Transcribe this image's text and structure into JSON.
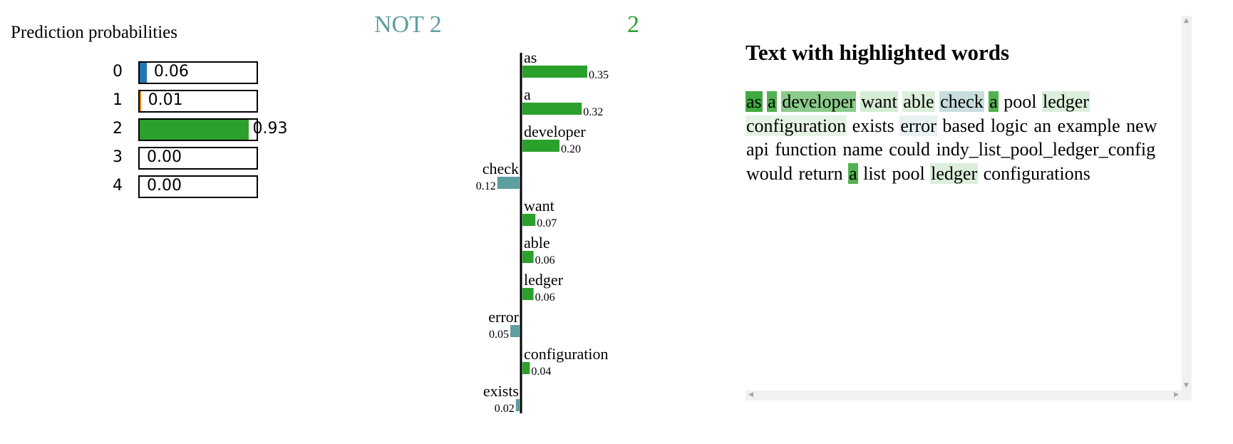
{
  "probabilities": {
    "title": "Prediction probabilities",
    "rows": [
      {
        "label": "0",
        "value": 0.06,
        "text": "0.06",
        "color": "#1f77b4"
      },
      {
        "label": "1",
        "value": 0.01,
        "text": "0.01",
        "color": "#ff7f0e"
      },
      {
        "label": "2",
        "value": 0.93,
        "text": "0.93",
        "color": "#2ca02c"
      },
      {
        "label": "3",
        "value": 0.0,
        "text": "0.00",
        "color": "#d62728"
      },
      {
        "label": "4",
        "value": 0.0,
        "text": "0.00",
        "color": "#9467bd"
      }
    ]
  },
  "explanation": {
    "negative_title": "NOT 2",
    "positive_title": "2",
    "negative_color": "#5f9ea0",
    "positive_color": "#2ca02c"
  },
  "chart_data": {
    "type": "bar",
    "orientation": "horizontal",
    "categories": [
      "as",
      "a",
      "developer",
      "check",
      "want",
      "able",
      "ledger",
      "error",
      "configuration",
      "exists"
    ],
    "values": [
      0.35,
      0.32,
      0.2,
      -0.12,
      0.07,
      0.06,
      0.06,
      -0.05,
      0.04,
      -0.02
    ],
    "labels": [
      "0.35",
      "0.32",
      "0.20",
      "0.12",
      "0.07",
      "0.06",
      "0.06",
      "0.05",
      "0.04",
      "0.02"
    ]
  },
  "text_panel": {
    "title": "Text with highlighted words",
    "tokens": [
      {
        "t": "as",
        "bg": "#2ca02c",
        "o": 0.9
      },
      {
        "t": "a",
        "bg": "#2ca02c",
        "o": 0.82
      },
      {
        "t": "developer",
        "bg": "#2ca02c",
        "o": 0.55
      },
      {
        "t": "want",
        "bg": "#2ca02c",
        "o": 0.2
      },
      {
        "t": "able",
        "bg": "#2ca02c",
        "o": 0.17
      },
      {
        "t": "check",
        "bg": "#5f9ea0",
        "o": 0.35
      },
      {
        "t": "a",
        "bg": "#2ca02c",
        "o": 0.82
      },
      {
        "t": "pool",
        "bg": "",
        "o": 0
      },
      {
        "t": "ledger",
        "bg": "#2ca02c",
        "o": 0.17
      },
      {
        "t": "configuration",
        "bg": "#2ca02c",
        "o": 0.12
      },
      {
        "t": "exists",
        "bg": "",
        "o": 0
      },
      {
        "t": "error",
        "bg": "#5f9ea0",
        "o": 0.15
      },
      {
        "t": "based",
        "bg": "",
        "o": 0
      },
      {
        "t": "logic",
        "bg": "",
        "o": 0
      },
      {
        "t": "an",
        "bg": "",
        "o": 0
      },
      {
        "t": "example",
        "bg": "",
        "o": 0
      },
      {
        "t": "new",
        "bg": "",
        "o": 0
      },
      {
        "t": "api",
        "bg": "",
        "o": 0
      },
      {
        "t": "function",
        "bg": "",
        "o": 0
      },
      {
        "t": "name",
        "bg": "",
        "o": 0
      },
      {
        "t": "could",
        "bg": "",
        "o": 0
      },
      {
        "t": "indy_list_pool_ledger_config",
        "bg": "",
        "o": 0
      },
      {
        "t": "would",
        "bg": "",
        "o": 0
      },
      {
        "t": "return",
        "bg": "",
        "o": 0
      },
      {
        "t": "a",
        "bg": "#2ca02c",
        "o": 0.82
      },
      {
        "t": "list",
        "bg": "",
        "o": 0
      },
      {
        "t": "pool",
        "bg": "",
        "o": 0
      },
      {
        "t": "ledger",
        "bg": "#2ca02c",
        "o": 0.17
      },
      {
        "t": "configurations",
        "bg": "",
        "o": 0
      }
    ]
  }
}
